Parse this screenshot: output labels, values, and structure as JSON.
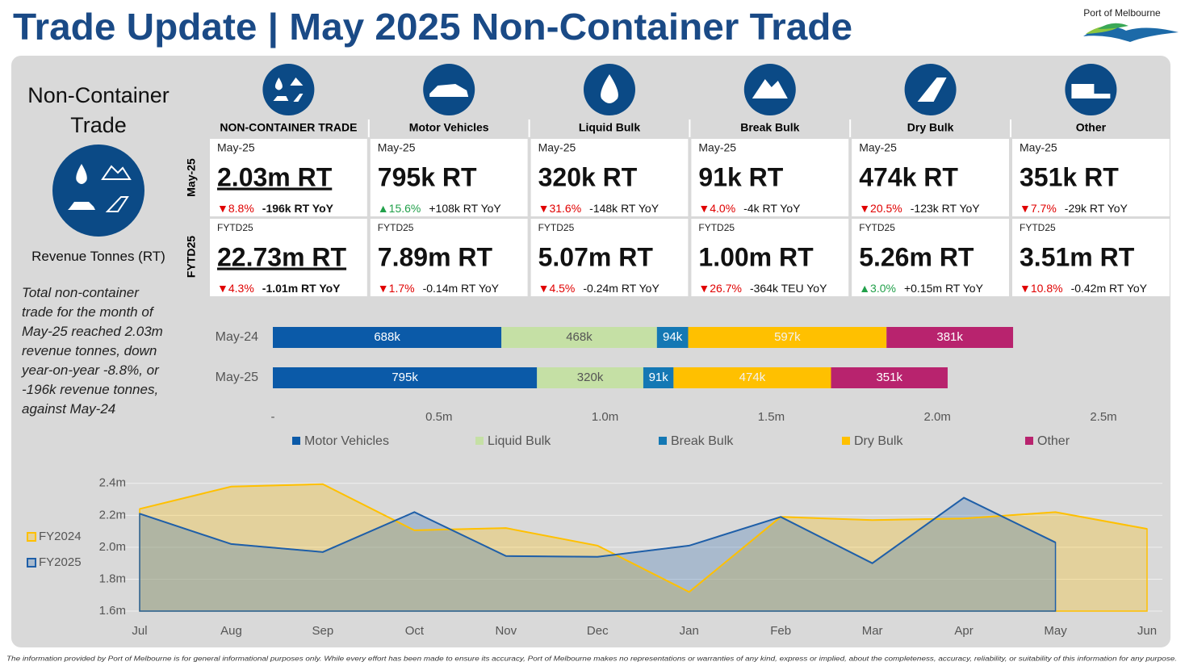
{
  "header": {
    "title": "Trade Update | May 2025 Non-Container Trade",
    "logo": "Port of Melbourne"
  },
  "sidebar": {
    "title": "Non-Container Trade",
    "unit": "Revenue Tonnes (RT)",
    "summary": "Total non-container trade for the month of May-25 reached 2.03m revenue tonnes, down year-on-year -8.8%, or -196k revenue tonnes, against May-24"
  },
  "kpis": {
    "rows": [
      "May-25",
      "FYTD25"
    ],
    "columns": [
      {
        "name": "NON-CONTAINER TRADE",
        "cells": [
          {
            "period": "May-25",
            "value": "2.03m RT",
            "change": "▼8.8%",
            "change_color": "#e00000",
            "delta": "-196k RT YoY"
          },
          {
            "period": "FYTD25",
            "value": "22.73m RT",
            "change": "▼4.3%",
            "change_color": "#e00000",
            "delta": "-1.01m RT YoY"
          }
        ]
      },
      {
        "name": "Motor Vehicles",
        "cells": [
          {
            "period": "May-25",
            "value": "795k RT",
            "change": "▲15.6%",
            "change_color": "#21a04a",
            "delta": "+108k RT YoY"
          },
          {
            "period": "FYTD25",
            "value": "7.89m RT",
            "change": "▼1.7%",
            "change_color": "#e00000",
            "delta": "-0.14m RT YoY"
          }
        ]
      },
      {
        "name": "Liquid Bulk",
        "cells": [
          {
            "period": "May-25",
            "value": "320k RT",
            "change": "▼31.6%",
            "change_color": "#e00000",
            "delta": "-148k RT YoY"
          },
          {
            "period": "FYTD25",
            "value": "5.07m RT",
            "change": "▼4.5%",
            "change_color": "#e00000",
            "delta": "-0.24m RT YoY"
          }
        ]
      },
      {
        "name": "Break Bulk",
        "cells": [
          {
            "period": "May-25",
            "value": "91k RT",
            "change": "▼4.0%",
            "change_color": "#e00000",
            "delta": "-4k RT YoY"
          },
          {
            "period": "FYTD25",
            "value": "1.00m RT",
            "change": "▼26.7%",
            "change_color": "#e00000",
            "delta": "-364k TEU YoY"
          }
        ]
      },
      {
        "name": "Dry Bulk",
        "cells": [
          {
            "period": "May-25",
            "value": "474k RT",
            "change": "▼20.5%",
            "change_color": "#e00000",
            "delta": "-123k RT YoY"
          },
          {
            "period": "FYTD25",
            "value": "5.26m RT",
            "change": "▲3.0%",
            "change_color": "#21a04a",
            "delta": "+0.15m RT YoY"
          }
        ]
      },
      {
        "name": "Other",
        "cells": [
          {
            "period": "May-25",
            "value": "351k RT",
            "change": "▼7.7%",
            "change_color": "#e00000",
            "delta": "-29k RT YoY"
          },
          {
            "period": "FYTD25",
            "value": "3.51m RT",
            "change": "▼10.8%",
            "change_color": "#e00000",
            "delta": "-0.42m RT YoY"
          }
        ]
      }
    ]
  },
  "chart_data": [
    {
      "type": "stacked_bar_horizontal",
      "categories": [
        "May-24",
        "May-25"
      ],
      "series": [
        {
          "name": "Motor Vehicles",
          "color": "#0b5aa8",
          "label_color": "#ffffff",
          "values": [
            688000,
            795000
          ],
          "value_labels": [
            "688k",
            "795k"
          ]
        },
        {
          "name": "Liquid Bulk",
          "color": "#c5e0a5",
          "label_color": "#555555",
          "values": [
            468000,
            320000
          ],
          "value_labels": [
            "468k",
            "320k"
          ]
        },
        {
          "name": "Break Bulk",
          "color": "#1478b4",
          "label_color": "#ffffff",
          "values": [
            94000,
            91000
          ],
          "value_labels": [
            "94k",
            "91k"
          ]
        },
        {
          "name": "Dry Bulk",
          "color": "#ffc000",
          "label_color": "#f2f2f2",
          "values": [
            597000,
            474000
          ],
          "value_labels": [
            "597k",
            "474k"
          ]
        },
        {
          "name": "Other",
          "color": "#b8236e",
          "label_color": "#ffffff",
          "values": [
            381000,
            351000
          ],
          "value_labels": [
            "381k",
            "351k"
          ]
        }
      ],
      "xlim": [
        0,
        2500000
      ],
      "xticks": [
        {
          "value": 0,
          "label": "-"
        },
        {
          "value": 500000,
          "label": "0.5m"
        },
        {
          "value": 1000000,
          "label": "1.0m"
        },
        {
          "value": 1500000,
          "label": "1.5m"
        },
        {
          "value": 2000000,
          "label": "2.0m"
        },
        {
          "value": 2500000,
          "label": "2.5m"
        }
      ],
      "legend": "bottom"
    },
    {
      "type": "area",
      "categories": [
        "Jul",
        "Aug",
        "Sep",
        "Oct",
        "Nov",
        "Dec",
        "Jan",
        "Feb",
        "Mar",
        "Apr",
        "May",
        "Jun"
      ],
      "series": [
        {
          "name": "FY2024",
          "color": "#ffc000",
          "fill": "rgba(255,192,0,0.28)",
          "values": [
            2240000,
            2380000,
            2395000,
            2106000,
            2120000,
            2010000,
            1720000,
            2190000,
            2170000,
            2180000,
            2220000,
            2115000
          ]
        },
        {
          "name": "FY2025",
          "color": "#1f5fa8",
          "fill": "rgba(60,115,180,0.3)",
          "values": [
            2210000,
            2020000,
            1970000,
            2220000,
            1945000,
            1940000,
            2010000,
            2190000,
            1900000,
            2310000,
            2030000,
            null
          ]
        }
      ],
      "ylim": [
        1600000,
        2500000
      ],
      "yticks": [
        {
          "value": 1600000,
          "label": "1.6m"
        },
        {
          "value": 1800000,
          "label": "1.8m"
        },
        {
          "value": 2000000,
          "label": "2.0m"
        },
        {
          "value": 2200000,
          "label": "2.2m"
        },
        {
          "value": 2400000,
          "label": "2.4m"
        }
      ],
      "grid": true,
      "legend": "left"
    }
  ],
  "footer": "The information provided by Port of Melbourne is for general informational purposes only. While every effort has been made to ensure its accuracy, Port of Melbourne makes no representations or warranties of any kind, express or implied, about the completeness, accuracy, reliability, or suitability of this information for any purpose."
}
